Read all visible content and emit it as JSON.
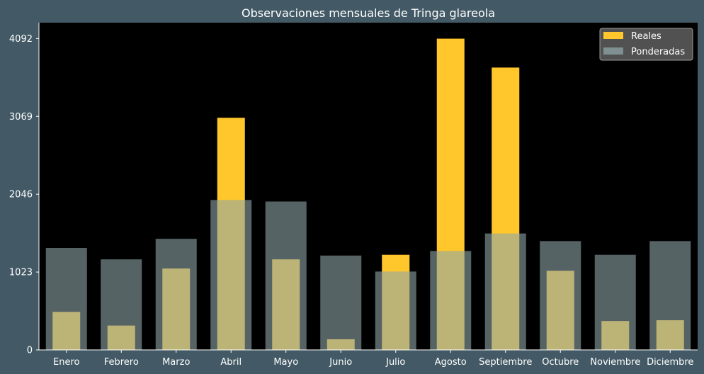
{
  "chart_data": {
    "type": "bar",
    "title": "Observaciones mensuales de Tringa glareola",
    "xlabel": "",
    "ylabel": "",
    "categories": [
      "Enero",
      "Febrero",
      "Marzo",
      "Abril",
      "Mayo",
      "Junio",
      "Julio",
      "Agosto",
      "Septiembre",
      "Octubre",
      "Noviembre",
      "Diciembre"
    ],
    "yticks": [
      0,
      1023,
      2046,
      3069,
      4092
    ],
    "ylim": [
      0,
      4300
    ],
    "grid": false,
    "legend_position": "top-right",
    "series": [
      {
        "name": "Reales",
        "color": "#ffc72c",
        "values": [
          500,
          320,
          1070,
          3050,
          1190,
          140,
          1250,
          4090,
          3710,
          1040,
          380,
          390
        ]
      },
      {
        "name": "Ponderadas",
        "color": "#8fa5a8",
        "values": [
          1340,
          1190,
          1460,
          1970,
          1950,
          1240,
          1030,
          1300,
          1530,
          1430,
          1250,
          1430
        ]
      }
    ]
  }
}
